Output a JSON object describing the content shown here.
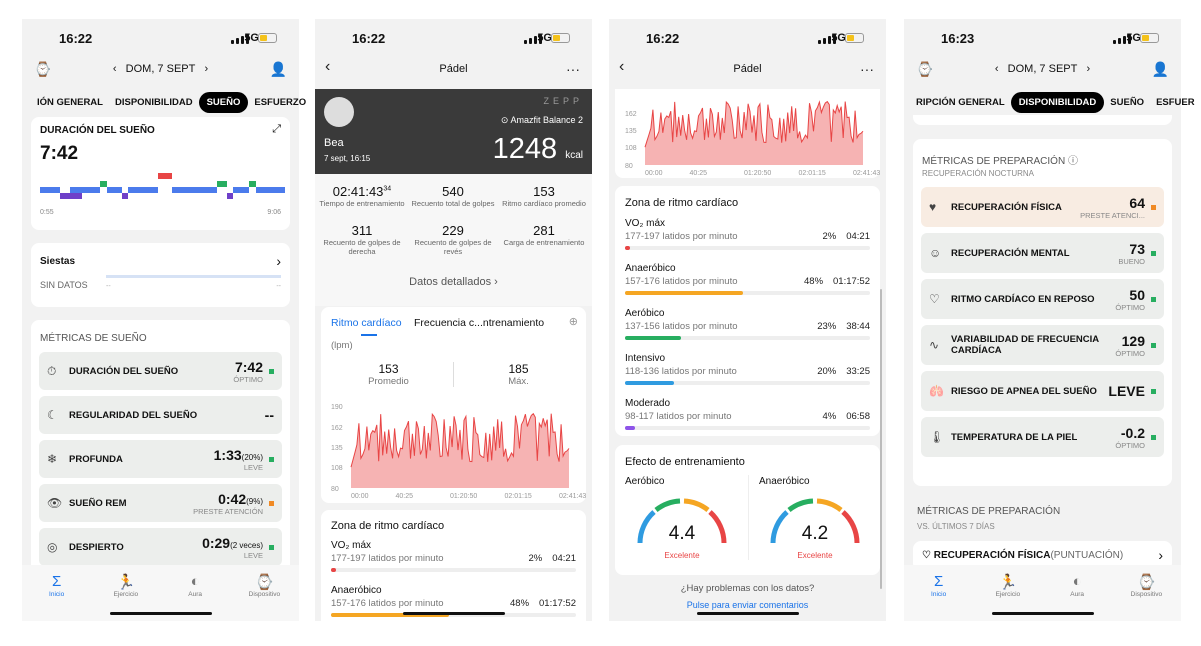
{
  "phone1": {
    "time": "16:22",
    "net": "5G",
    "date": "DOM, 7 SEPT",
    "tabs": [
      "IÓN GENERAL",
      "DISPONIBILIDAD",
      "SUEÑO",
      "ESFUERZO"
    ],
    "sleep_title": "DURACIÓN DEL SUEÑO",
    "sleep_value": "7:42",
    "sleep_start": "0:55",
    "sleep_end": "9:06",
    "naps_title": "Siestas",
    "naps_status": "SIN DATOS",
    "naps_dash1": "--",
    "naps_dash2": "--",
    "metrics_title": "MÉTRICAS DE SUEÑO",
    "metrics": [
      {
        "label": "DURACIÓN DEL SUEÑO",
        "value": "7:42",
        "extra": "",
        "status": "ÓPTIMO",
        "color": "#27ae60"
      },
      {
        "label": "REGULARIDAD DEL SUEÑO",
        "value": "--",
        "extra": "",
        "status": "",
        "color": ""
      },
      {
        "label": "PROFUNDA",
        "value": "1:33",
        "extra": "(20%)",
        "status": "LEVE",
        "color": "#27ae60"
      },
      {
        "label": "SUEÑO REM",
        "value": "0:42",
        "extra": "(9%)",
        "status": "PRESTE ATENCIÓN",
        "color": "#f08a24"
      },
      {
        "label": "DESPIERTO",
        "value": "0:29",
        "extra": "(2 veces)",
        "status": "LEVE",
        "color": "#27ae60"
      }
    ]
  },
  "nav": {
    "home": "Inicio",
    "exercise": "Ejercicio",
    "aura": "Aura",
    "device": "Dispositivo"
  },
  "phone2": {
    "time": "16:22",
    "net": "5G",
    "title": "Pádel",
    "brand": "ZEPP",
    "user": "Bea",
    "device": "Amazfit Balance 2",
    "date": "7 sept, 16:15",
    "kcal": "1248",
    "kcal_unit": "kcal",
    "stats": [
      {
        "value": "02:41:43",
        "sup": "34",
        "label": "Tiempo de entrenamiento"
      },
      {
        "value": "540",
        "sup": "",
        "label": "Recuento total de golpes"
      },
      {
        "value": "153",
        "sup": "",
        "label": "Ritmo cardíaco promedio"
      },
      {
        "value": "311",
        "sup": "",
        "label": "Recuento de golpes de derecha"
      },
      {
        "value": "229",
        "sup": "",
        "label": "Recuento de golpes de revés"
      },
      {
        "value": "281",
        "sup": "",
        "label": "Carga de entrenamiento"
      }
    ],
    "details": "Datos detallados",
    "tab1": "Ritmo cardíaco",
    "tab2": "Frecuencia c...ntrenamiento",
    "unit": "(lpm)",
    "avg": "153",
    "avg_label": "Promedio",
    "max": "185",
    "max_label": "Máx.",
    "zone_title": "Zona de ritmo cardíaco",
    "zones": [
      {
        "name": "VO₂ máx",
        "range": "177-197 latidos por minuto",
        "pct": "2%",
        "time": "04:21"
      },
      {
        "name": "Anaeróbico",
        "range": "157-176 latidos por minuto",
        "pct": "48%",
        "time": "01:17:52"
      }
    ]
  },
  "phone3": {
    "time": "16:22",
    "net": "5G",
    "title": "Pádel",
    "zone_title": "Zona de ritmo cardíaco",
    "zones": [
      {
        "name": "VO₂ máx",
        "range": "177-197 latidos por minuto",
        "pct": "2%",
        "time": "04:21",
        "fill": 0.02,
        "color": "#e84545"
      },
      {
        "name": "Anaeróbico",
        "range": "157-176 latidos por minuto",
        "pct": "48%",
        "time": "01:17:52",
        "fill": 0.48,
        "color": "#f5a623"
      },
      {
        "name": "Aeróbico",
        "range": "137-156 latidos por minuto",
        "pct": "23%",
        "time": "38:44",
        "fill": 0.23,
        "color": "#27ae60"
      },
      {
        "name": "Intensivo",
        "range": "118-136 latidos por minuto",
        "pct": "20%",
        "time": "33:25",
        "fill": 0.2,
        "color": "#2f9be0"
      },
      {
        "name": "Moderado",
        "range": "98-117 latidos por minuto",
        "pct": "4%",
        "time": "06:58",
        "fill": 0.04,
        "color": "#8e54e9"
      }
    ],
    "effect_title": "Efecto de entrenamiento",
    "aer_label": "Aeróbico",
    "aer_value": "4.4",
    "aer_status": "Excelente",
    "ana_label": "Anaeróbico",
    "ana_value": "4.2",
    "ana_status": "Excelente",
    "feedback_q": "¿Hay problemas con los datos?",
    "feedback_link": "Pulse para enviar comentarios"
  },
  "phone4": {
    "time": "16:23",
    "net": "5G",
    "date": "DOM, 7 SEPT",
    "tabs": [
      "RIPCIÓN GENERAL",
      "DISPONIBILIDAD",
      "SUEÑO",
      "ESFUER"
    ],
    "metrics_title": "MÉTRICAS DE PREPARACIÓN",
    "metrics_sub": "RECUPERACIÓN NOCTURNA",
    "metrics": [
      {
        "label": "RECUPERACIÓN FÍSICA",
        "value": "64",
        "status": "PRESTE ATENCI...",
        "color": "#f08a24",
        "warm": true
      },
      {
        "label": "RECUPERACIÓN MENTAL",
        "value": "73",
        "status": "BUENO",
        "color": "#27ae60"
      },
      {
        "label": "RITMO CARDÍACO EN REPOSO",
        "value": "50",
        "status": "ÓPTIMO",
        "color": "#27ae60"
      },
      {
        "label": "VARIABILIDAD DE FRECUENCIA CARDÍACA",
        "value": "129",
        "status": "ÓPTIMO",
        "color": "#27ae60"
      },
      {
        "label": "RIESGO DE APNEA DEL SUEÑO",
        "value": "LEVE",
        "status": "",
        "color": "#27ae60"
      },
      {
        "label": "TEMPERATURA DE LA PIEL",
        "value": "-0.2",
        "status": "ÓPTIMO",
        "color": "#27ae60"
      }
    ],
    "section2_title": "MÉTRICAS DE PREPARACIÓN",
    "section2_sub": "VS. ÚLTIMOS 7 DÍAS",
    "row2_label": "RECUPERACIÓN FÍSICA",
    "row2_extra": "(PUNTUACIÓN)"
  },
  "chart_data": {
    "type": "area",
    "title": "Ritmo cardíaco",
    "ylabel": "(lpm)",
    "yticks": [
      190,
      162,
      135,
      108,
      80
    ],
    "xticks": [
      "00:00",
      "40:25",
      "01:20:50",
      "02:01:15",
      "02:41:43"
    ],
    "ylim": [
      80,
      190
    ],
    "color": "#e84545"
  }
}
